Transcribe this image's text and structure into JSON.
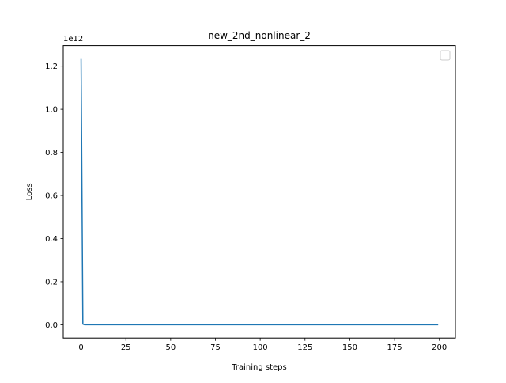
{
  "chart_data": {
    "type": "line",
    "title": "new_2nd_nonlinear_2",
    "xlabel": "Training steps",
    "ylabel": "Loss",
    "y_offset_label": "1e12",
    "y_scale_factor": 1000000000000,
    "xlim": [
      -9.95,
      208.95
    ],
    "ylim": [
      -61700000000,
      1295700000000
    ],
    "xticks": [
      0,
      25,
      50,
      75,
      100,
      125,
      150,
      175,
      200
    ],
    "xtick_labels": [
      "0",
      "25",
      "50",
      "75",
      "100",
      "125",
      "150",
      "175",
      "200"
    ],
    "yticks": [
      0,
      200000000000,
      400000000000,
      600000000000,
      800000000000,
      1000000000000,
      1200000000000
    ],
    "ytick_labels": [
      "0.0",
      "0.2",
      "0.4",
      "0.6",
      "0.8",
      "1.0",
      "1.2"
    ],
    "grid": false,
    "legend": {
      "placement": "top-right",
      "entries": []
    },
    "series": [
      {
        "color": "#1f77b4",
        "x": [
          0,
          1,
          2,
          199
        ],
        "y": [
          1234000000000,
          3000000000,
          0,
          0
        ]
      }
    ]
  }
}
